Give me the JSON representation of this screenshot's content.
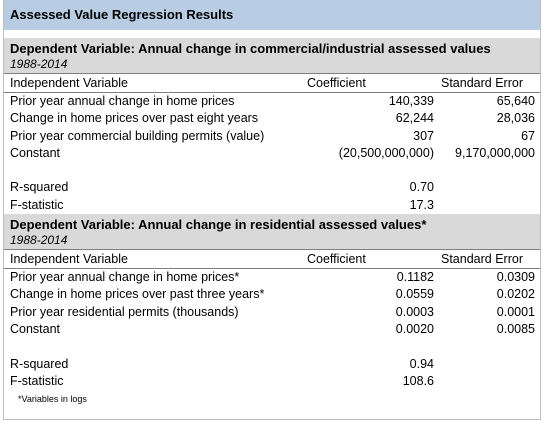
{
  "header": {
    "title": "Assessed Value Regression Results"
  },
  "sections": [
    {
      "title": "Dependent Variable: Annual change in commercial/industrial assessed values",
      "period": "1988-2014",
      "columns": [
        "Independent Variable",
        "Coefficient",
        "Standard Error"
      ],
      "rows": [
        [
          "Prior year annual change in home prices",
          "140,339",
          "65,640"
        ],
        [
          "Change in home prices over past eight years",
          "62,244",
          "28,036"
        ],
        [
          "Prior year commercial building permits (value)",
          "307",
          "67"
        ],
        [
          "Constant",
          "(20,500,000,000)",
          "9,170,000,000"
        ]
      ],
      "stats": [
        [
          "R-squared",
          "0.70"
        ],
        [
          "F-statistic",
          "17.3"
        ]
      ]
    },
    {
      "title": "Dependent Variable: Annual change in residential assessed values*",
      "period": "1988-2014",
      "columns": [
        "Independent Variable",
        "Coefficient",
        "Standard Error"
      ],
      "rows": [
        [
          "Prior year annual change in home prices*",
          "0.1182",
          "0.0309"
        ],
        [
          "Change in home prices over past three years*",
          "0.0559",
          "0.0202"
        ],
        [
          "Prior year residential permits (thousands)",
          "0.0003",
          "0.0001"
        ],
        [
          "Constant",
          "0.0020",
          "0.0085"
        ]
      ],
      "stats": [
        [
          "R-squared",
          "0.94"
        ],
        [
          "F-statistic",
          "108.6"
        ]
      ]
    }
  ],
  "footnote": "*Variables in logs"
}
